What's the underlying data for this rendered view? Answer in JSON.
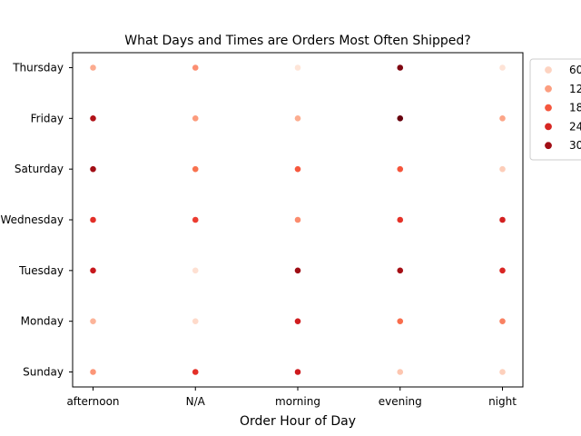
{
  "chart_data": {
    "type": "scatter",
    "title": "What Days and Times are Orders Most Often Shipped?",
    "xlabel": "Order Hour of Day",
    "ylabel": "",
    "x_categories": [
      "afternoon",
      "N/A",
      "morning",
      "evening",
      "night"
    ],
    "y_categories": [
      "Thursday",
      "Friday",
      "Saturday",
      "Wednesday",
      "Tuesday",
      "Monday",
      "Sunday"
    ],
    "hue_levels": [
      "60",
      "12",
      "18",
      "24",
      "30"
    ],
    "hue_colors": [
      "#fdd3c1",
      "#fc9e80",
      "#f5573e",
      "#d72723",
      "#a10e15"
    ],
    "points": [
      {
        "x": "afternoon",
        "y": "Thursday",
        "color": "#fcab8f"
      },
      {
        "x": "N/A",
        "y": "Thursday",
        "color": "#fc8e71"
      },
      {
        "x": "morning",
        "y": "Thursday",
        "color": "#fee5d8"
      },
      {
        "x": "evening",
        "y": "Thursday",
        "color": "#7f0611"
      },
      {
        "x": "night",
        "y": "Thursday",
        "color": "#fee3d6"
      },
      {
        "x": "afternoon",
        "y": "Friday",
        "color": "#b11218"
      },
      {
        "x": "N/A",
        "y": "Friday",
        "color": "#fc9b7c"
      },
      {
        "x": "morning",
        "y": "Friday",
        "color": "#fcad90"
      },
      {
        "x": "evening",
        "y": "Friday",
        "color": "#67000d"
      },
      {
        "x": "night",
        "y": "Friday",
        "color": "#fca588"
      },
      {
        "x": "afternoon",
        "y": "Saturday",
        "color": "#a10e15"
      },
      {
        "x": "N/A",
        "y": "Saturday",
        "color": "#f8724f"
      },
      {
        "x": "morning",
        "y": "Saturday",
        "color": "#f6583e"
      },
      {
        "x": "evening",
        "y": "Saturday",
        "color": "#f5553b"
      },
      {
        "x": "night",
        "y": "Saturday",
        "color": "#fdcdb9"
      },
      {
        "x": "afternoon",
        "y": "Wednesday",
        "color": "#e22e27"
      },
      {
        "x": "N/A",
        "y": "Wednesday",
        "color": "#ec3c30"
      },
      {
        "x": "morning",
        "y": "Wednesday",
        "color": "#fb8c6e"
      },
      {
        "x": "evening",
        "y": "Wednesday",
        "color": "#e53228"
      },
      {
        "x": "night",
        "y": "Wednesday",
        "color": "#d32020"
      },
      {
        "x": "afternoon",
        "y": "Tuesday",
        "color": "#c7171c"
      },
      {
        "x": "N/A",
        "y": "Tuesday",
        "color": "#fee0d2"
      },
      {
        "x": "morning",
        "y": "Tuesday",
        "color": "#9e0d14"
      },
      {
        "x": "evening",
        "y": "Tuesday",
        "color": "#a50f15"
      },
      {
        "x": "night",
        "y": "Tuesday",
        "color": "#d92523"
      },
      {
        "x": "afternoon",
        "y": "Monday",
        "color": "#fcb499"
      },
      {
        "x": "N/A",
        "y": "Monday",
        "color": "#fedaca"
      },
      {
        "x": "morning",
        "y": "Monday",
        "color": "#d01d1f"
      },
      {
        "x": "evening",
        "y": "Monday",
        "color": "#f96d4c"
      },
      {
        "x": "night",
        "y": "Monday",
        "color": "#f98162"
      },
      {
        "x": "afternoon",
        "y": "Sunday",
        "color": "#fc9678"
      },
      {
        "x": "N/A",
        "y": "Sunday",
        "color": "#e32f27"
      },
      {
        "x": "morning",
        "y": "Sunday",
        "color": "#ce1a1e"
      },
      {
        "x": "evening",
        "y": "Sunday",
        "color": "#fdc6b0"
      },
      {
        "x": "night",
        "y": "Sunday",
        "color": "#fdd0bc"
      }
    ],
    "grid": false,
    "legend_position": "outside top-right"
  }
}
